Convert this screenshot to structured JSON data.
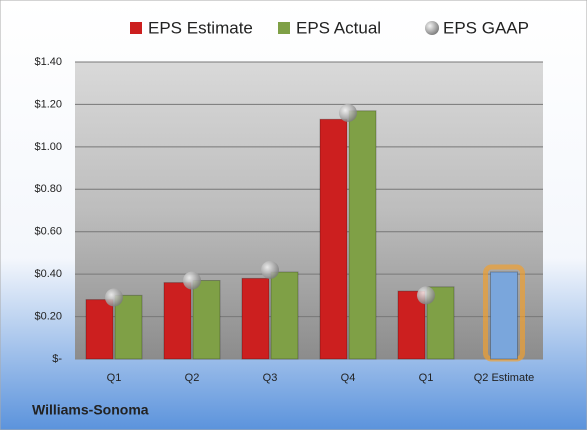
{
  "chart_data": {
    "type": "bar",
    "categories": [
      "Q1",
      "Q2",
      "Q3",
      "Q4",
      "Q1",
      "Q2 Estimate"
    ],
    "series": [
      {
        "name": "EPS Estimate",
        "color": "#cc1f1f",
        "values": [
          0.28,
          0.36,
          0.38,
          1.13,
          0.32,
          0.41
        ],
        "highlight_colors": [
          null,
          null,
          null,
          null,
          null,
          "#7aa6dc"
        ]
      },
      {
        "name": "EPS Actual",
        "color": "#7fa046",
        "values": [
          0.3,
          0.37,
          0.41,
          1.17,
          0.34,
          null
        ]
      },
      {
        "name": "EPS GAAP",
        "color": "#9a9a9a",
        "marker": "sphere",
        "values": [
          0.29,
          0.37,
          0.42,
          1.16,
          0.3,
          null
        ]
      }
    ],
    "ylim": [
      0,
      1.4
    ],
    "yticks": [
      {
        "value": 0,
        "label": "$-"
      },
      {
        "value": 0.2,
        "label": "$0.20"
      },
      {
        "value": 0.4,
        "label": "$0.40"
      },
      {
        "value": 0.6,
        "label": "$0.60"
      },
      {
        "value": 0.8,
        "label": "$0.80"
      },
      {
        "value": 1.0,
        "label": "$1.00"
      },
      {
        "value": 1.2,
        "label": "$1.20"
      },
      {
        "value": 1.4,
        "label": "$1.40"
      }
    ],
    "grid": true,
    "legend": "top",
    "footer": "Williams-Sonoma"
  }
}
